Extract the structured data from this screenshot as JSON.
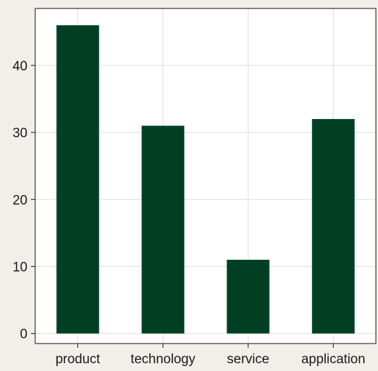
{
  "chart_data": {
    "type": "bar",
    "categories": [
      "product",
      "technology",
      "service",
      "application"
    ],
    "values": [
      46,
      31,
      11,
      32
    ],
    "ylim": [
      -1.5,
      48.5
    ],
    "yticks": [
      0,
      10,
      20,
      30,
      40
    ],
    "grid": true,
    "title": "",
    "xlabel": "",
    "ylabel": "",
    "colors": {
      "bar": "#003f24",
      "plot_background": "#ffffff",
      "page_background": "#f2efeb",
      "grid": "#dedede",
      "axis": "#333333"
    }
  }
}
